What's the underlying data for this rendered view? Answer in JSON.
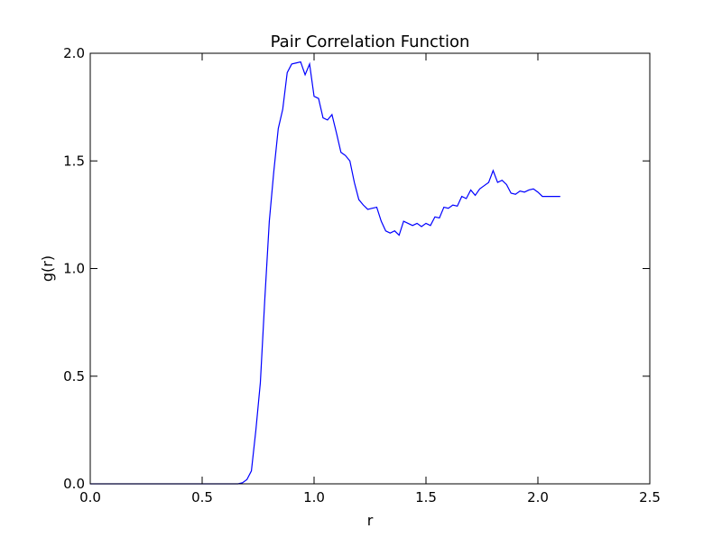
{
  "chart_data": {
    "type": "line",
    "title": "Pair Correlation Function",
    "xlabel": "r",
    "ylabel": "g(r)",
    "xlim": [
      0,
      2.5
    ],
    "ylim": [
      0,
      2.0
    ],
    "xticks": [
      0,
      0.5,
      1.0,
      1.5,
      2.0,
      2.5
    ],
    "xtick_labels": [
      "0.0",
      "0.5",
      "1.0",
      "1.5",
      "2.0",
      "2.5"
    ],
    "yticks": [
      0,
      0.5,
      1.0,
      1.5,
      2.0
    ],
    "ytick_labels": [
      "0.0",
      "0.5",
      "1.0",
      "1.5",
      "2.0"
    ],
    "grid": false,
    "line_color": "#0000ff",
    "x": [
      0.0,
      0.1,
      0.2,
      0.3,
      0.4,
      0.5,
      0.6,
      0.66,
      0.68,
      0.7,
      0.72,
      0.74,
      0.76,
      0.78,
      0.8,
      0.82,
      0.84,
      0.86,
      0.88,
      0.9,
      0.92,
      0.94,
      0.96,
      0.98,
      1.0,
      1.02,
      1.04,
      1.06,
      1.08,
      1.1,
      1.12,
      1.14,
      1.16,
      1.18,
      1.2,
      1.22,
      1.24,
      1.26,
      1.28,
      1.3,
      1.32,
      1.34,
      1.36,
      1.38,
      1.4,
      1.42,
      1.44,
      1.46,
      1.48,
      1.5,
      1.52,
      1.54,
      1.56,
      1.58,
      1.6,
      1.62,
      1.64,
      1.66,
      1.68,
      1.7,
      1.72,
      1.74,
      1.76,
      1.78,
      1.8,
      1.82,
      1.84,
      1.86,
      1.88,
      1.9,
      1.92,
      1.94,
      1.96,
      1.98,
      2.0,
      2.02,
      2.04,
      2.06,
      2.08,
      2.1
    ],
    "y": [
      0.0,
      0.0,
      0.0,
      0.0,
      0.0,
      0.0,
      0.0,
      0.0,
      0.005,
      0.02,
      0.06,
      0.25,
      0.47,
      0.86,
      1.22,
      1.45,
      1.65,
      1.74,
      1.91,
      1.95,
      1.955,
      1.96,
      1.9,
      1.95,
      1.8,
      1.79,
      1.7,
      1.69,
      1.715,
      1.63,
      1.54,
      1.525,
      1.5,
      1.4,
      1.32,
      1.295,
      1.275,
      1.28,
      1.285,
      1.22,
      1.175,
      1.165,
      1.175,
      1.155,
      1.22,
      1.21,
      1.2,
      1.21,
      1.195,
      1.21,
      1.2,
      1.24,
      1.235,
      1.285,
      1.28,
      1.295,
      1.29,
      1.335,
      1.325,
      1.365,
      1.34,
      1.37,
      1.385,
      1.4,
      1.455,
      1.4,
      1.41,
      1.39,
      1.35,
      1.345,
      1.36,
      1.355,
      1.365,
      1.37,
      1.355,
      1.335,
      1.335,
      1.335,
      1.335,
      1.335
    ]
  }
}
